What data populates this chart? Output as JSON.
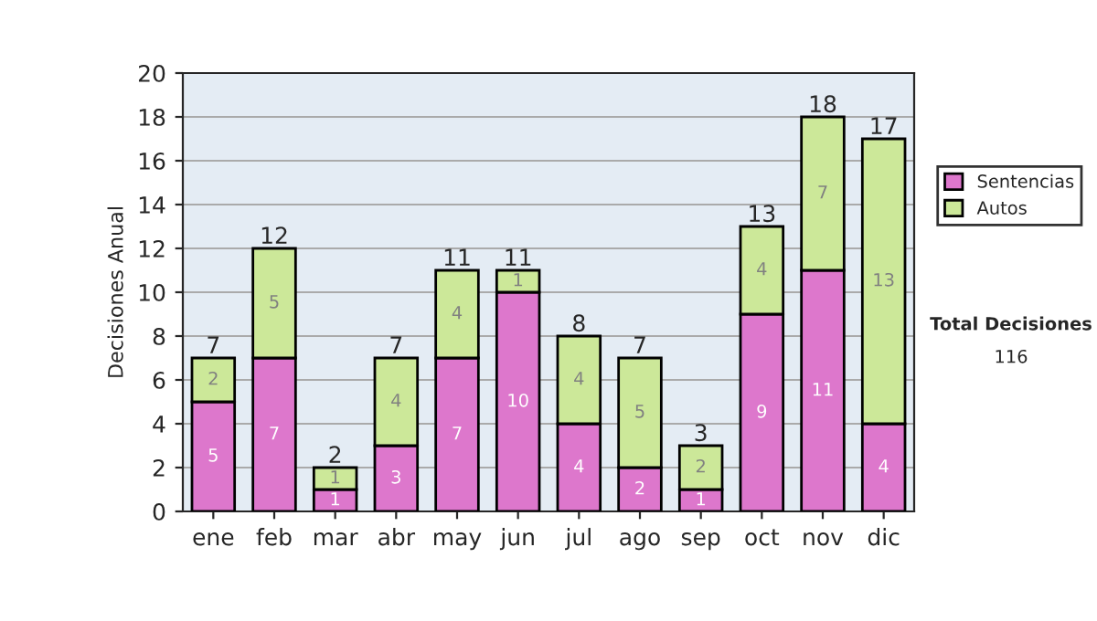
{
  "chart_data": {
    "type": "bar",
    "stacked": true,
    "ylabel": "Decisiones Anual",
    "categories": [
      "ene",
      "feb",
      "mar",
      "abr",
      "may",
      "jun",
      "jul",
      "ago",
      "sep",
      "oct",
      "nov",
      "dic"
    ],
    "series": [
      {
        "name": "Sentencias",
        "color": "#dd77cc",
        "values": [
          5,
          7,
          1,
          3,
          7,
          10,
          4,
          2,
          1,
          9,
          11,
          4
        ]
      },
      {
        "name": "Autos",
        "color": "#cce899",
        "values": [
          2,
          5,
          1,
          4,
          4,
          1,
          4,
          5,
          2,
          4,
          7,
          13
        ]
      }
    ],
    "totals": [
      "7",
      "12",
      "2",
      "7",
      "11",
      "11",
      "8",
      "7",
      "3",
      "13",
      "18",
      "17"
    ],
    "data_labels": true,
    "ylim": [
      0,
      20
    ],
    "yticks": [
      0,
      2,
      4,
      6,
      8,
      10,
      12,
      14,
      16,
      18,
      20
    ],
    "grid": "y",
    "legend": "right",
    "annotations": [
      "Total Decisiones",
      "116"
    ]
  }
}
